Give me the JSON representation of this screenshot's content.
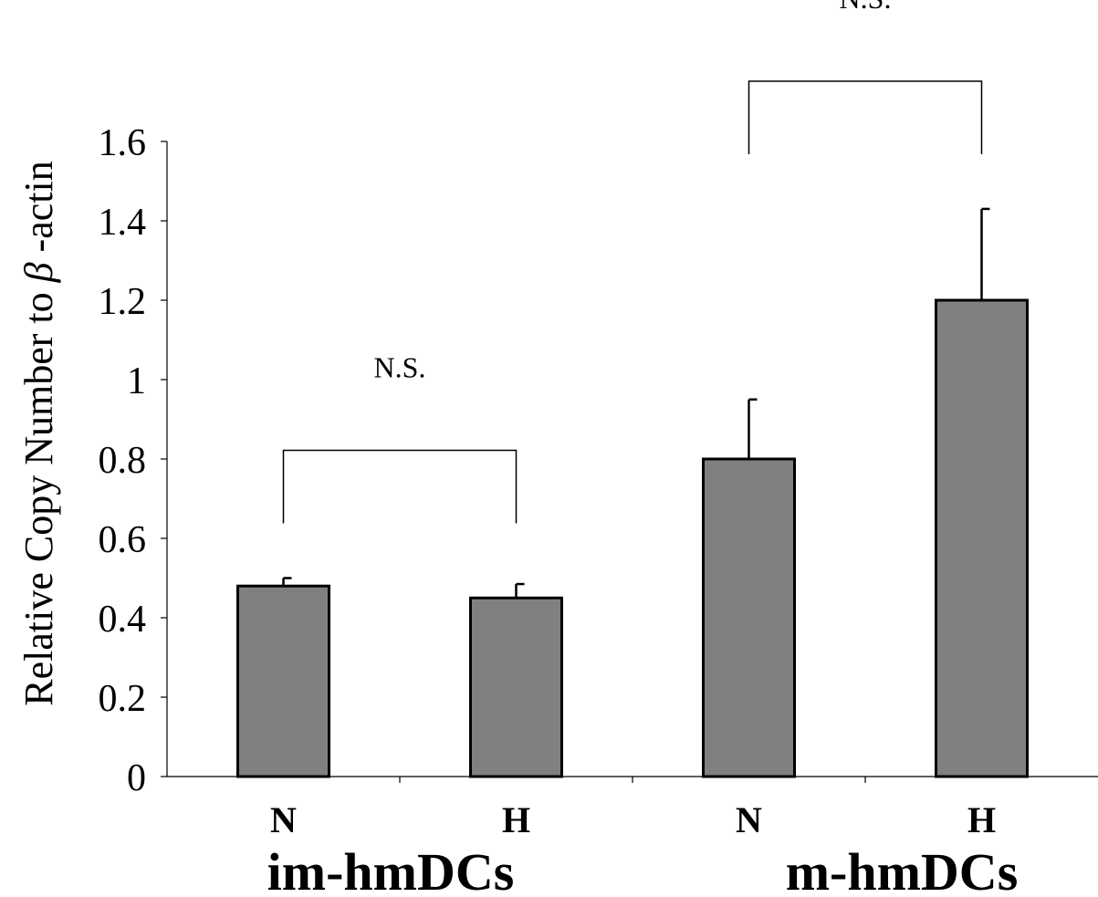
{
  "chart_data": {
    "type": "bar",
    "ylabel_prefix": "Relative Copy Number to ",
    "ylabel_greek": "β",
    "ylabel_suffix": " -actin",
    "ylim": [
      0,
      1.6
    ],
    "yticks": [
      "0",
      "0.2",
      "0.4",
      "0.6",
      "0.8",
      "1",
      "1.2",
      "1.4",
      "1.6"
    ],
    "categories": [
      "N",
      "H",
      "N",
      "H"
    ],
    "groups": [
      "im-hmDCs",
      "m-hmDCs"
    ],
    "values": [
      0.48,
      0.45,
      0.8,
      1.2
    ],
    "errors": [
      0.02,
      0.035,
      0.15,
      0.23
    ],
    "bar_color": "#808080",
    "grid": false,
    "annotations": [
      {
        "label": "N.S.",
        "from": 0,
        "to": 1
      },
      {
        "label": "N.S.",
        "from": 2,
        "to": 3
      }
    ]
  }
}
